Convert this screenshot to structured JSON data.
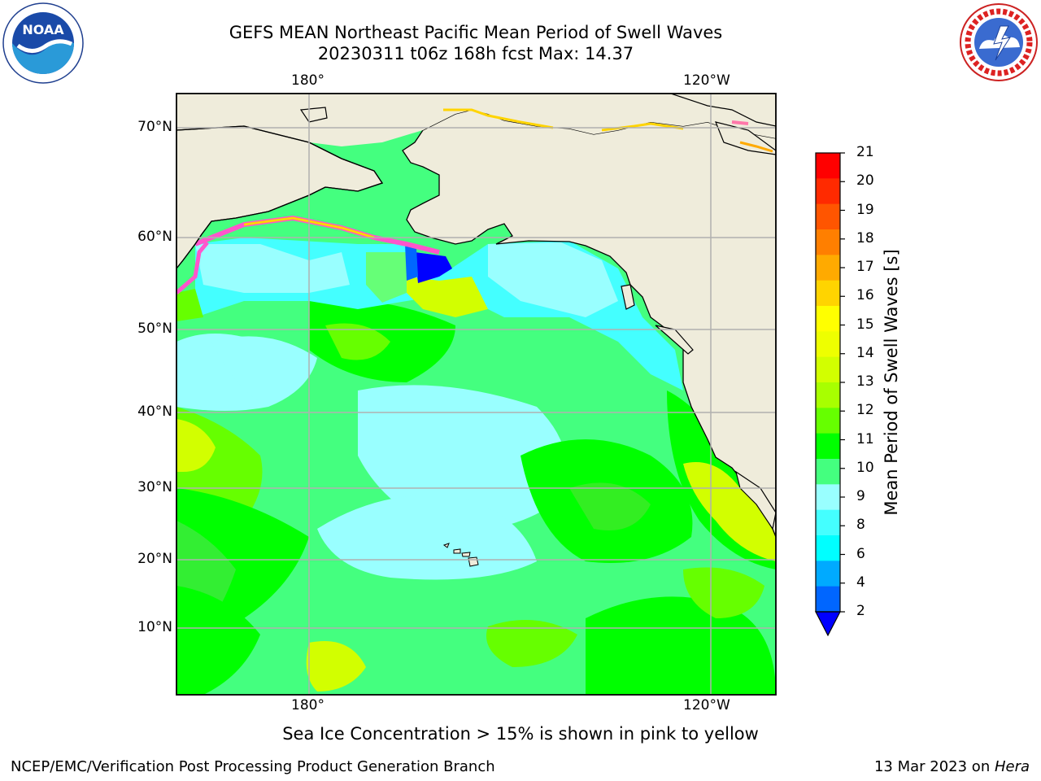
{
  "header": {
    "title_line1": "GEFS MEAN Northeast Pacific Mean Period of Swell Waves",
    "title_line2": "20230311 t06z 168h fcst   Max: 14.37"
  },
  "logos": {
    "left": "NOAA",
    "right": "NATIONAL WEATHER SERVICE"
  },
  "map": {
    "top_lon_labels": [
      "180°",
      "120°W"
    ],
    "bottom_lon_labels": [
      "180°",
      "120°W"
    ],
    "lat_labels": [
      "70°N",
      "60°N",
      "50°N",
      "40°N",
      "30°N",
      "20°N",
      "10°N"
    ],
    "land_color": "#efecdb",
    "grid_color": "#b0b0b0"
  },
  "colorbar": {
    "title": "Mean Period of Swell Waves [s]",
    "ticks": [
      "21",
      "20",
      "19",
      "18",
      "17",
      "16",
      "15",
      "14",
      "13",
      "12",
      "11",
      "10",
      "9",
      "8",
      "6",
      "4",
      "2"
    ],
    "colors_top_to_bottom": [
      "#ff0000",
      "#ff2a00",
      "#ff5500",
      "#ff7f00",
      "#ffaa00",
      "#ffd400",
      "#ffff00",
      "#eeff00",
      "#d2ff00",
      "#a8ff00",
      "#66ff00",
      "#00ff00",
      "#44ff7f",
      "#99ffff",
      "#44ffff",
      "#00ffff",
      "#00aaff",
      "#0066ff"
    ],
    "extend_color": "#0000ff"
  },
  "footer": {
    "sea_ice_note": "Sea Ice Concentration > 15% is shown in pink to yellow",
    "credit": "NCEP/EMC/Verification Post Processing Product Generation Branch",
    "date_text": "13 Mar 2023 on ",
    "machine": "Hera"
  }
}
